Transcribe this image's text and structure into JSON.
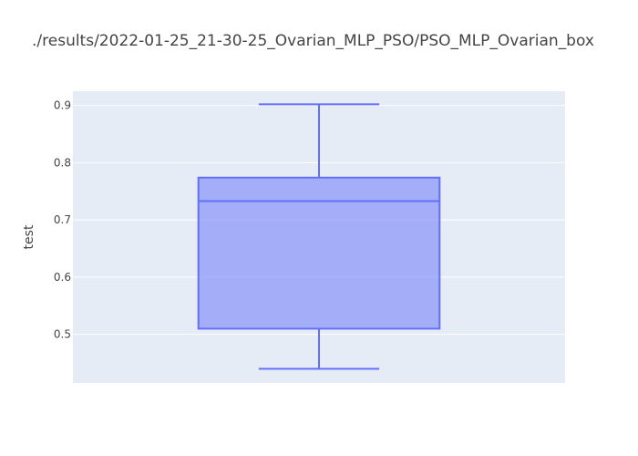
{
  "chart_data": {
    "type": "box",
    "title": "./results/2022-01-25_21-30-25_Ovarian_MLP_PSO/PSO_MLP_Ovarian_box",
    "xlabel": "",
    "ylabel": "test",
    "ylim": [
      0.415,
      0.925
    ],
    "yticks": [
      0.5,
      0.6,
      0.7,
      0.8,
      0.9
    ],
    "yticklabels": [
      "0.5",
      "0.6",
      "0.7",
      "0.8",
      "0.9"
    ],
    "grid": true,
    "series": [
      {
        "min": 0.44,
        "q1": 0.51,
        "median": 0.733,
        "q3": 0.774,
        "max": 0.902
      }
    ],
    "colors": {
      "plot_bg": "#e5ecf6",
      "grid": "#ffffff",
      "line": "#636efa",
      "fill": "rgba(99,110,250,0.5)"
    }
  }
}
